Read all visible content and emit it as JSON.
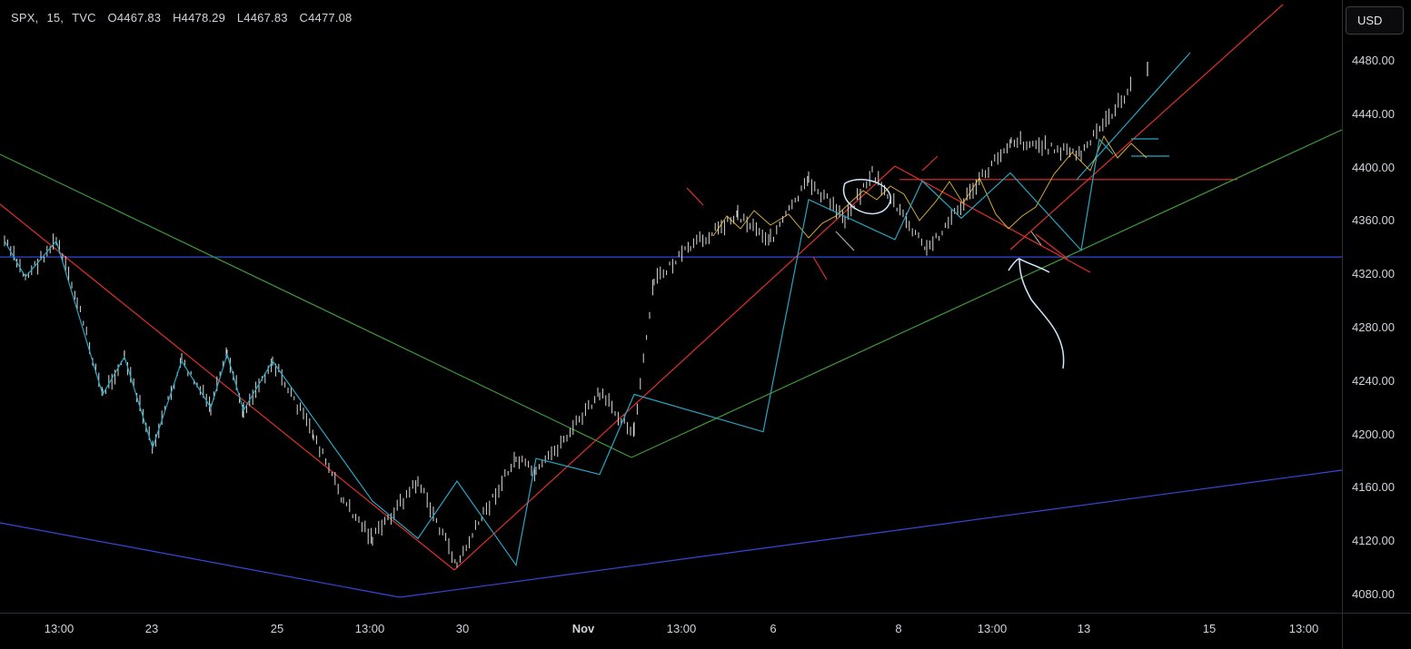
{
  "header": {
    "symbol": "SPX",
    "interval": "15",
    "exchange": "TVC",
    "open": "O4467.83",
    "high": "H4478.29",
    "low": "L4467.83",
    "close": "C4477.08"
  },
  "currency_button": "USD",
  "colors": {
    "background": "#000000",
    "candles": "#d9d9d9",
    "zigzag": "#26a6c4",
    "red_trend": "#e0302b",
    "green_trend": "#3f9a3a",
    "blue_line": "#3548d9",
    "yellow_highlight": "#f5c542",
    "annotation": "#cfe8ff"
  },
  "chart_data": {
    "type": "candlestick",
    "symbol": "SPX",
    "timeframe": "15",
    "ylim": [
      4070,
      4500
    ],
    "price_ticks": [
      "4480.00",
      "4440.00",
      "4400.00",
      "4360.00",
      "4320.00",
      "4280.00",
      "4240.00",
      "4200.00",
      "4160.00",
      "4120.00",
      "4080.00"
    ],
    "time_ticks": [
      "13:00",
      "23",
      "25",
      "13:00",
      "30",
      "Nov",
      "13:00",
      "6",
      "8",
      "13:00",
      "13",
      "15",
      "13:00"
    ],
    "horizontal_levels": [
      {
        "name": "blue-support",
        "price": 4333,
        "color": "#3548d9"
      },
      {
        "name": "red-resistance",
        "price": 4391,
        "color": "#e0302b"
      }
    ],
    "zigzag_prices": [
      4345,
      4318,
      4345,
      4230,
      4258,
      4190,
      4255,
      4220,
      4260,
      4218,
      4255,
      4150,
      4122,
      4165,
      4102,
      4182,
      4170,
      4230,
      4202,
      4376,
      4346,
      4390,
      4362,
      4396,
      4338,
      4421,
      4410
    ],
    "candle_path_prices": [
      4345,
      4318,
      4345,
      4300,
      4230,
      4258,
      4190,
      4255,
      4220,
      4260,
      4218,
      4255,
      4200,
      4150,
      4122,
      4165,
      4102,
      4140,
      4182,
      4170,
      4230,
      4202,
      4315,
      4340,
      4365,
      4346,
      4390,
      4362,
      4396,
      4338,
      4421,
      4410,
      4477
    ],
    "annotations": [
      {
        "name": "circle-marker",
        "type": "ellipse"
      },
      {
        "name": "hand-drawn-arrow",
        "type": "arrow-up"
      }
    ]
  }
}
